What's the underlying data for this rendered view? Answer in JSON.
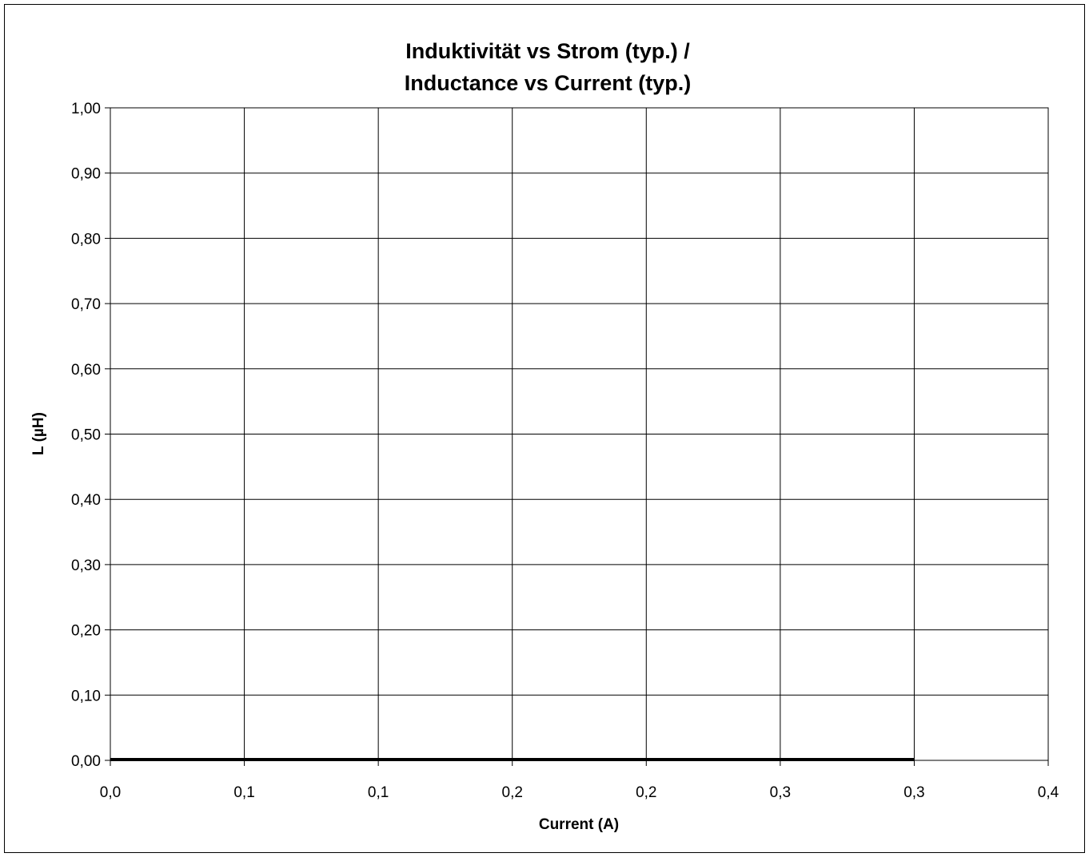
{
  "chart_data": {
    "type": "line",
    "title_line1": "Induktivität vs Strom (typ.) /",
    "title_line2": "Inductance vs Current (typ.)",
    "xlabel": "Current (A)",
    "ylabel": "L (µH)",
    "xlim": [
      0,
      0.35
    ],
    "ylim": [
      0,
      1.0
    ],
    "grid": true,
    "x_tick_values": [
      0,
      0.05,
      0.1,
      0.15,
      0.2,
      0.25,
      0.3,
      0.35
    ],
    "x_tick_labels": [
      "0,0",
      "0,1",
      "0,1",
      "0,2",
      "0,2",
      "0,3",
      "0,3",
      "0,4"
    ],
    "y_tick_values": [
      0,
      0.1,
      0.2,
      0.3,
      0.4,
      0.5,
      0.6,
      0.7,
      0.8,
      0.9,
      1.0
    ],
    "y_tick_labels": [
      "0,00",
      "0,10",
      "0,20",
      "0,30",
      "0,40",
      "0,50",
      "0,60",
      "0,70",
      "0,80",
      "0,90",
      "1,00"
    ],
    "series": [
      {
        "x": [
          0,
          0.3
        ],
        "y": [
          0,
          0
        ],
        "color": "#000000"
      }
    ]
  }
}
